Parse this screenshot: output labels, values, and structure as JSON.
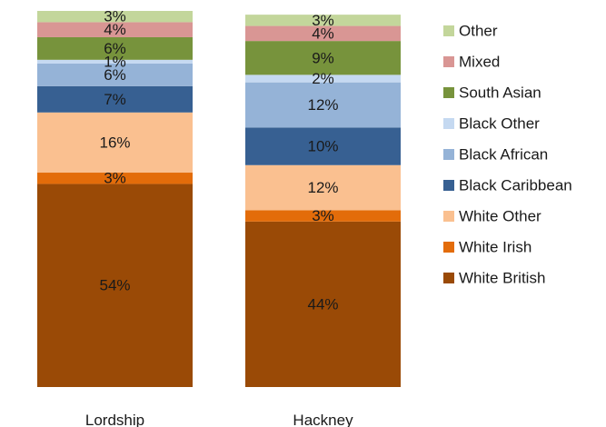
{
  "chart_data": {
    "type": "bar",
    "stacked": true,
    "normalized": true,
    "categories": [
      "Lordship",
      "Hackney"
    ],
    "series": [
      {
        "name": "White British",
        "color": "#9a4a06",
        "values": [
          54,
          44
        ],
        "labels": [
          "54%",
          "44%"
        ]
      },
      {
        "name": "White Irish",
        "color": "#e36c0a",
        "values": [
          3,
          3
        ],
        "labels": [
          "3%",
          "3%"
        ]
      },
      {
        "name": "White Other",
        "color": "#fac090",
        "values": [
          16,
          12
        ],
        "labels": [
          "16%",
          "12%"
        ]
      },
      {
        "name": "Black Caribbean",
        "color": "#376092",
        "values": [
          7,
          10
        ],
        "labels": [
          "7%",
          "10%"
        ]
      },
      {
        "name": "Black African",
        "color": "#95b3d7",
        "values": [
          6,
          12
        ],
        "labels": [
          "6%",
          "12%"
        ]
      },
      {
        "name": "Black Other",
        "color": "#c5d9f1",
        "values": [
          1,
          2
        ],
        "labels": [
          "1%",
          "2%"
        ]
      },
      {
        "name": "South Asian",
        "color": "#77933c",
        "values": [
          6,
          9
        ],
        "labels": [
          "6%",
          "9%"
        ]
      },
      {
        "name": "Mixed",
        "color": "#d99694",
        "values": [
          4,
          4
        ],
        "labels": [
          "4%",
          "4%"
        ]
      },
      {
        "name": "Other",
        "color": "#c3d69b",
        "values": [
          3,
          3
        ],
        "labels": [
          "3%",
          "3%"
        ]
      }
    ],
    "legend_position": "right",
    "grid": false
  }
}
